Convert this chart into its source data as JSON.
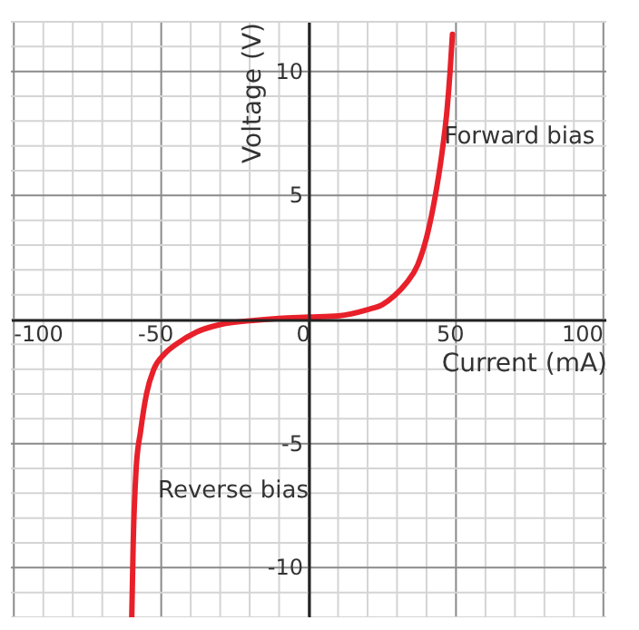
{
  "chart_data": {
    "type": "line",
    "xlabel": "Current (mA)",
    "ylabel": "Voltage (V)",
    "x": [
      -60,
      -59.5,
      -58.5,
      -57,
      -55,
      -52.5,
      -49,
      -45,
      -38,
      -30,
      -20,
      -10,
      0,
      10,
      20,
      25,
      29,
      33,
      37,
      40,
      43,
      45,
      47,
      48,
      48.8
    ],
    "series": [
      {
        "color": "#e8202a",
        "values": [
          -12,
          -9,
          -6,
          -4.5,
          -3,
          -2,
          -1.4,
          -1,
          -0.5,
          -0.2,
          -0.05,
          0.05,
          0.1,
          0.15,
          0.4,
          0.6,
          0.95,
          1.45,
          2.2,
          3.3,
          5,
          6.5,
          8.5,
          10,
          11.5
        ]
      }
    ],
    "xlim": [
      -101,
      101
    ],
    "ylim": [
      -12,
      12
    ],
    "xticks": [
      -100,
      {
        "value": -90,
        "label": null
      },
      {
        "value": -80,
        "label": null
      },
      {
        "value": -70,
        "label": null
      },
      {
        "value": -60,
        "label": null
      },
      -50,
      {
        "value": -40,
        "label": null
      },
      {
        "value": -30,
        "label": null
      },
      {
        "value": -20,
        "label": null
      },
      {
        "value": -10,
        "label": null
      },
      0,
      {
        "value": 10,
        "label": null
      },
      {
        "value": 20,
        "label": null
      },
      {
        "value": 30,
        "label": null
      },
      {
        "value": 40,
        "label": null
      },
      50,
      {
        "value": 60,
        "label": null
      },
      {
        "value": 70,
        "label": null
      },
      {
        "value": 80,
        "label": null
      },
      {
        "value": 90,
        "label": null
      },
      100
    ],
    "yticks": [
      {
        "value": -12,
        "label": null
      },
      {
        "value": -11,
        "label": null
      },
      -10,
      {
        "value": -9,
        "label": null
      },
      {
        "value": -8,
        "label": null
      },
      {
        "value": -7,
        "label": null
      },
      {
        "value": -6,
        "label": null
      },
      -5,
      {
        "value": -4,
        "label": null
      },
      {
        "value": -3,
        "label": null
      },
      {
        "value": -2,
        "label": null
      },
      {
        "value": -1,
        "label": null
      },
      {
        "value": 0,
        "label": null
      },
      {
        "value": 1,
        "label": null
      },
      {
        "value": 2,
        "label": null
      },
      {
        "value": 3,
        "label": null
      },
      {
        "value": 4,
        "label": null
      },
      5,
      {
        "value": 6,
        "label": null
      },
      {
        "value": 7,
        "label": null
      },
      {
        "value": 8,
        "label": null
      },
      {
        "value": 9,
        "label": null
      },
      10,
      {
        "value": 11,
        "label": null
      },
      {
        "value": 12,
        "label": null
      }
    ],
    "grid": true,
    "marker": "none",
    "line_style": "solid",
    "annotations": [
      {
        "text": "Forward bias",
        "x": 46,
        "y": 7.4
      },
      "Reverse bias"
    ]
  }
}
